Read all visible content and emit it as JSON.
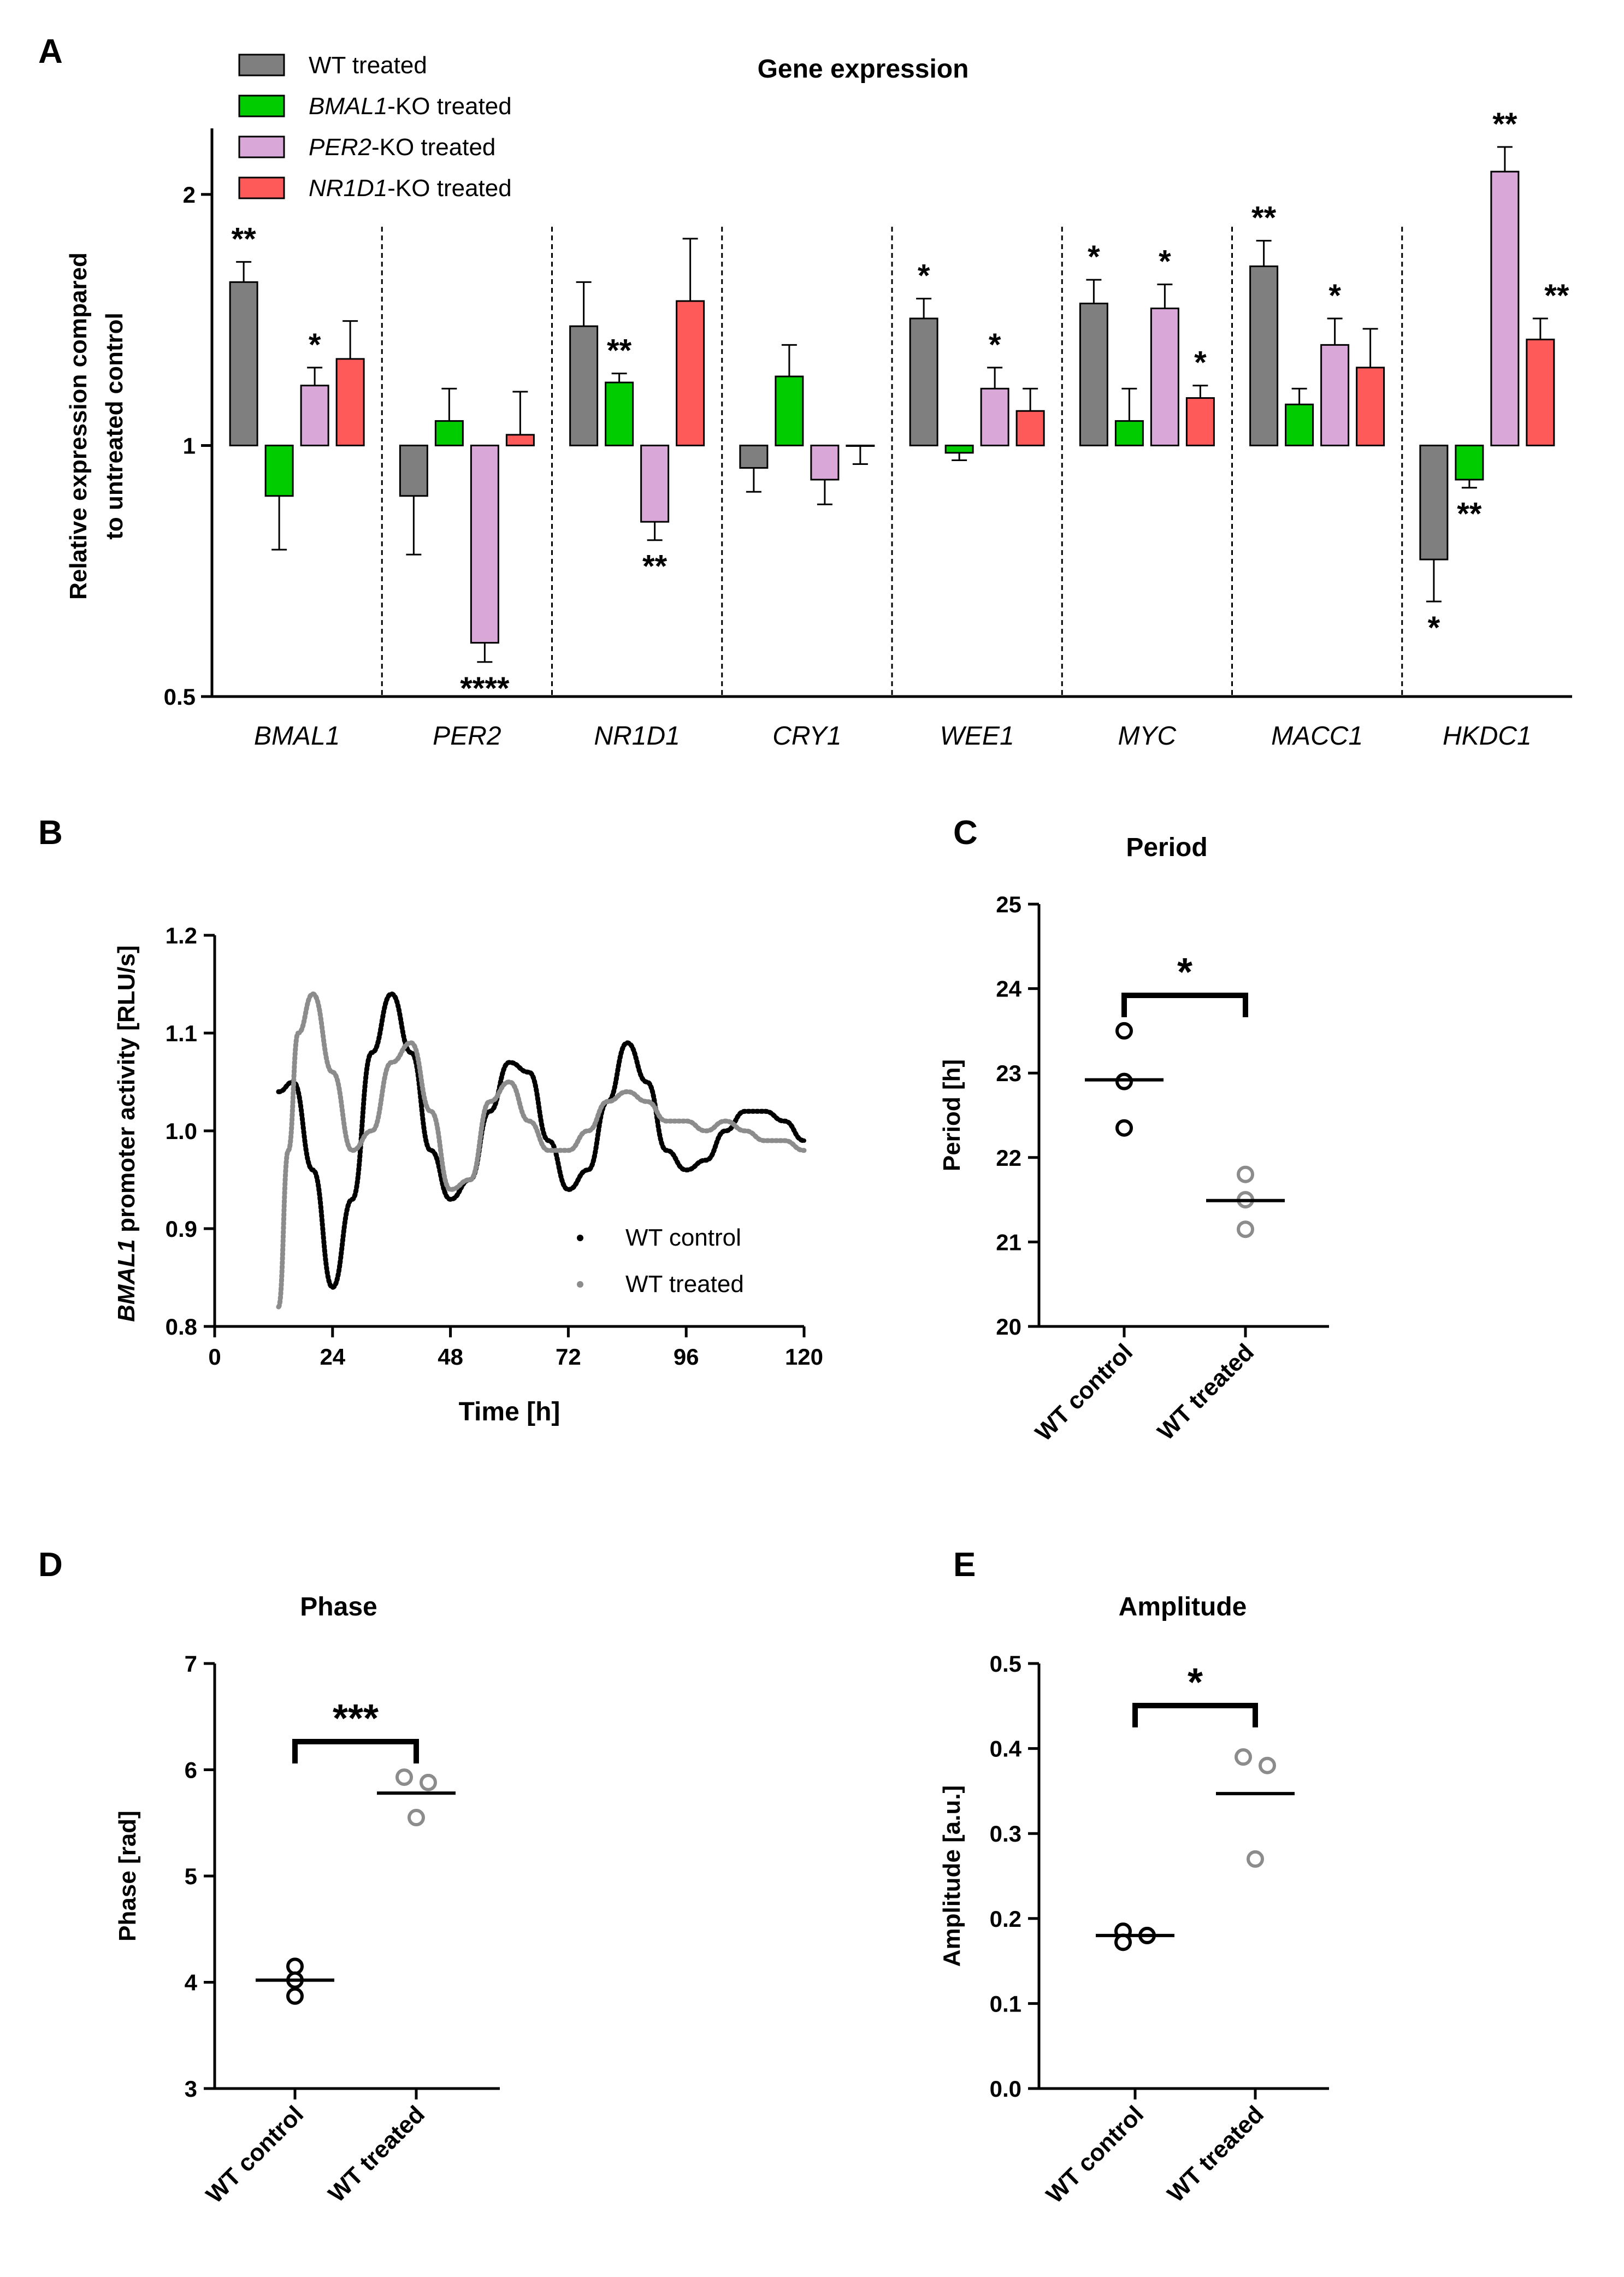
{
  "colors": {
    "wt": "#7f7f7f",
    "bmal1ko": "#00cc00",
    "per2ko": "#d9a8d9",
    "nr1d1ko": "#ff5a5a",
    "control_line": "#000000",
    "treated_line": "#8c8c8c"
  },
  "chart_data": [
    {
      "panel": "A",
      "type": "bar",
      "title": "Gene expression",
      "ylabel_line1": "Relative expression compared",
      "ylabel_line2": "to untreated control",
      "yscale": "log2",
      "ylim": [
        0.5,
        2.4
      ],
      "yticks": [
        "2",
        "1",
        "0.5"
      ],
      "ytick_values": [
        2,
        1,
        0.5
      ],
      "baseline": 1,
      "categories": [
        "BMAL1",
        "PER2",
        "NR1D1",
        "CRY1",
        "WEE1",
        "MYC",
        "MACC1",
        "HKDC1"
      ],
      "legend": {
        "position": "top-left",
        "entries": [
          {
            "italic": "",
            "plain": "WT treated"
          },
          {
            "italic": "BMAL1",
            "plain": "-KO treated"
          },
          {
            "italic": "PER2",
            "plain": "-KO treated"
          },
          {
            "italic": "NR1D1",
            "plain": "-KO treated"
          }
        ]
      },
      "series": [
        {
          "name": "WT treated",
          "color_key": "wt",
          "values": [
            1.57,
            0.87,
            1.39,
            0.94,
            1.42,
            1.48,
            1.64,
            0.73
          ],
          "errors": [
            1.66,
            0.74,
            1.57,
            0.88,
            1.5,
            1.58,
            1.76,
            0.65
          ],
          "stars": [
            "**",
            "",
            "",
            "",
            "*",
            "*",
            "**",
            "*"
          ]
        },
        {
          "name": "BMAL1-KO treated",
          "color_key": "bmal1ko",
          "values": [
            0.87,
            1.07,
            1.19,
            1.21,
            0.98,
            1.07,
            1.12,
            0.91
          ],
          "errors": [
            0.75,
            1.17,
            1.22,
            1.32,
            0.96,
            1.17,
            1.17,
            0.89
          ],
          "stars": [
            "",
            "",
            "**",
            "",
            "",
            "",
            "",
            "**"
          ]
        },
        {
          "name": "PER2-KO treated",
          "color_key": "per2ko",
          "values": [
            1.18,
            0.58,
            0.81,
            0.91,
            1.17,
            1.46,
            1.32,
            2.13
          ],
          "errors": [
            1.24,
            0.55,
            0.77,
            0.85,
            1.24,
            1.56,
            1.42,
            2.28
          ],
          "stars": [
            "*",
            "****",
            "**",
            "",
            "*",
            "*",
            "*",
            "**"
          ]
        },
        {
          "name": "NR1D1-KO treated",
          "color_key": "nr1d1ko",
          "values": [
            1.27,
            1.03,
            1.49,
            1.0,
            1.1,
            1.14,
            1.24,
            1.34
          ],
          "errors": [
            1.41,
            1.16,
            1.77,
            0.95,
            1.17,
            1.18,
            1.38,
            1.42
          ],
          "stars": [
            "",
            "",
            "",
            "",
            "",
            "*",
            "",
            "**"
          ]
        }
      ]
    },
    {
      "panel": "B",
      "type": "scatter",
      "ylabel_italic": "BMAL1",
      "ylabel_plain": " promoter activity [RLU/s]",
      "xlabel": "Time [h]",
      "xlim": [
        0,
        120
      ],
      "ylim": [
        0.8,
        1.2
      ],
      "xticks": [
        "0",
        "24",
        "48",
        "72",
        "96",
        "120"
      ],
      "xtick_values": [
        0,
        24,
        48,
        72,
        96,
        120
      ],
      "yticks": [
        "0.8",
        "0.9",
        "1.0",
        "1.1",
        "1.2"
      ],
      "ytick_values": [
        0.8,
        0.9,
        1.0,
        1.1,
        1.2
      ],
      "legend": {
        "position": "bottom-right",
        "entries": [
          "WT control",
          "WT treated"
        ]
      },
      "series": [
        {
          "name": "WT control",
          "color_key": "control_line",
          "x": [
            13,
            16,
            20,
            24,
            28,
            32,
            36,
            40,
            44,
            48,
            52,
            56,
            60,
            64,
            68,
            72,
            76,
            80,
            84,
            88,
            92,
            96,
            100,
            104,
            108,
            112,
            116,
            120
          ],
          "y": [
            1.04,
            1.05,
            0.96,
            0.84,
            0.93,
            1.08,
            1.14,
            1.08,
            0.98,
            0.93,
            0.95,
            1.02,
            1.07,
            1.06,
            0.99,
            0.94,
            0.96,
            1.03,
            1.09,
            1.05,
            0.98,
            0.96,
            0.97,
            1.0,
            1.02,
            1.02,
            1.01,
            0.99
          ]
        },
        {
          "name": "WT treated",
          "color_key": "treated_line",
          "x": [
            13,
            15,
            17,
            20,
            24,
            28,
            32,
            36,
            40,
            44,
            48,
            52,
            56,
            60,
            64,
            68,
            72,
            76,
            80,
            84,
            88,
            92,
            96,
            100,
            104,
            108,
            112,
            116,
            120
          ],
          "y": [
            0.82,
            0.98,
            1.1,
            1.14,
            1.06,
            0.98,
            1.0,
            1.07,
            1.09,
            1.02,
            0.94,
            0.95,
            1.03,
            1.05,
            1.01,
            0.98,
            0.98,
            1.0,
            1.03,
            1.04,
            1.03,
            1.01,
            1.01,
            1.0,
            1.01,
            1.0,
            0.99,
            0.99,
            0.98
          ]
        }
      ]
    },
    {
      "panel": "C",
      "type": "scatter",
      "title": "Period",
      "ylabel": "Period [h]",
      "ylim": [
        20,
        25
      ],
      "yticks": [
        "20",
        "21",
        "22",
        "23",
        "24",
        "25"
      ],
      "ytick_values": [
        20,
        21,
        22,
        23,
        24,
        25
      ],
      "categories": [
        "WT control",
        "WT treated"
      ],
      "points": [
        [
          23.5,
          22.9,
          22.35
        ],
        [
          21.8,
          21.5,
          21.15
        ]
      ],
      "means": [
        22.92,
        21.49
      ],
      "significance": "*"
    },
    {
      "panel": "D",
      "type": "scatter",
      "title": "Phase",
      "ylabel": "Phase [rad]",
      "ylim": [
        3,
        7
      ],
      "yticks": [
        "3",
        "4",
        "5",
        "6",
        "7"
      ],
      "ytick_values": [
        3,
        4,
        5,
        6,
        7
      ],
      "categories": [
        "WT control",
        "WT treated"
      ],
      "points": [
        [
          4.15,
          4.02,
          3.87
        ],
        [
          5.93,
          5.88,
          5.55
        ]
      ],
      "means": [
        4.02,
        5.78
      ],
      "significance": "***"
    },
    {
      "panel": "E",
      "type": "scatter",
      "title": "Amplitude",
      "ylabel": "Amplitude [a.u.]",
      "ylim": [
        0,
        0.5
      ],
      "yticks": [
        "0.0",
        "0.1",
        "0.2",
        "0.3",
        "0.4",
        "0.5"
      ],
      "ytick_values": [
        0,
        0.1,
        0.2,
        0.3,
        0.4,
        0.5
      ],
      "categories": [
        "WT control",
        "WT treated"
      ],
      "points": [
        [
          0.185,
          0.172,
          0.18
        ],
        [
          0.39,
          0.38,
          0.27
        ]
      ],
      "means": [
        0.18,
        0.347
      ],
      "significance": "*"
    }
  ]
}
